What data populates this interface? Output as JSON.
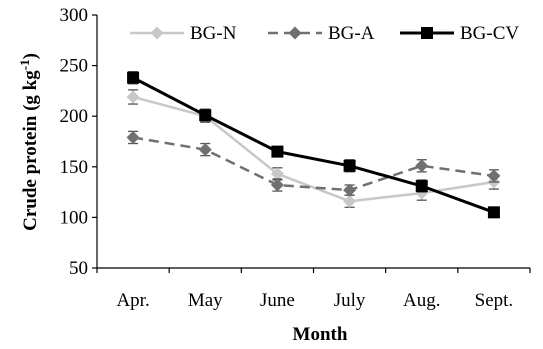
{
  "chart_data": {
    "type": "line",
    "xlabel": "Month",
    "ylabel": "Crude protein (g kg",
    "ylabel_sup": "-1",
    "ylabel_close": ")",
    "ylim": [
      50,
      300
    ],
    "yticks": [
      50,
      100,
      150,
      200,
      250,
      300
    ],
    "grid": false,
    "legend_position": "top",
    "categories": [
      "Apr.",
      "May",
      "June",
      "July",
      "Aug.",
      "Sept."
    ],
    "series": [
      {
        "name": "BG-N",
        "values": [
          219,
          200,
          143,
          116,
          124,
          135
        ],
        "errors": [
          7,
          6,
          6,
          6,
          7,
          7
        ],
        "color": "#c8c8c8",
        "marker": "diamond",
        "dash": "solid"
      },
      {
        "name": "BG-A",
        "values": [
          179,
          167,
          132,
          127,
          151,
          141
        ],
        "errors": [
          6,
          6,
          6,
          5,
          6,
          6
        ],
        "color": "#707070",
        "marker": "diamond",
        "dash": "dashed"
      },
      {
        "name": "BG-CV",
        "values": [
          238,
          201,
          165,
          151,
          131,
          105
        ],
        "errors": [
          6,
          6,
          5,
          6,
          6,
          5
        ],
        "color": "#000000",
        "marker": "square",
        "dash": "solid"
      }
    ]
  }
}
